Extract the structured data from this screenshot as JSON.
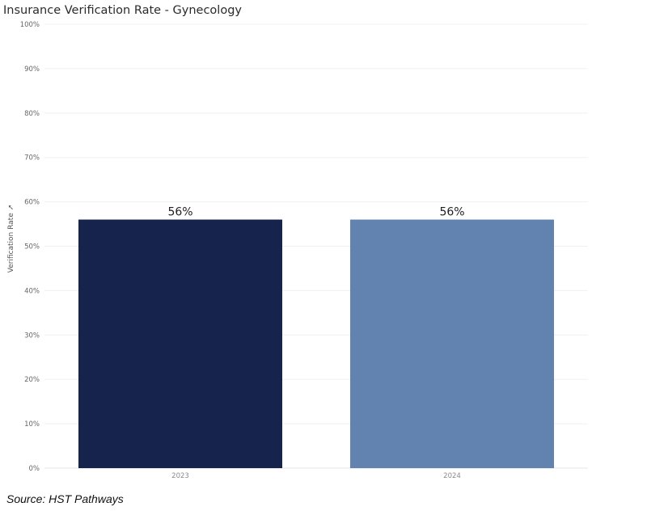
{
  "chart_data": {
    "type": "bar",
    "title": "Insurance Verification Rate - Gynecology",
    "ylabel": "Verification Rate",
    "xlabel": "",
    "categories": [
      "2023",
      "2024"
    ],
    "values": [
      56,
      56
    ],
    "data_labels": [
      "56%",
      "56%"
    ],
    "colors": [
      "#16244d",
      "#6283b0"
    ],
    "ylim": [
      0,
      100
    ],
    "yticks": [
      0,
      10,
      20,
      30,
      40,
      50,
      60,
      70,
      80,
      90,
      100
    ],
    "ytick_labels": [
      "0%",
      "10%",
      "20%",
      "30%",
      "40%",
      "50%",
      "60%",
      "70%",
      "80%",
      "90%",
      "100%"
    ],
    "grid": true,
    "legend": "none"
  },
  "source": "Source: HST Pathways"
}
